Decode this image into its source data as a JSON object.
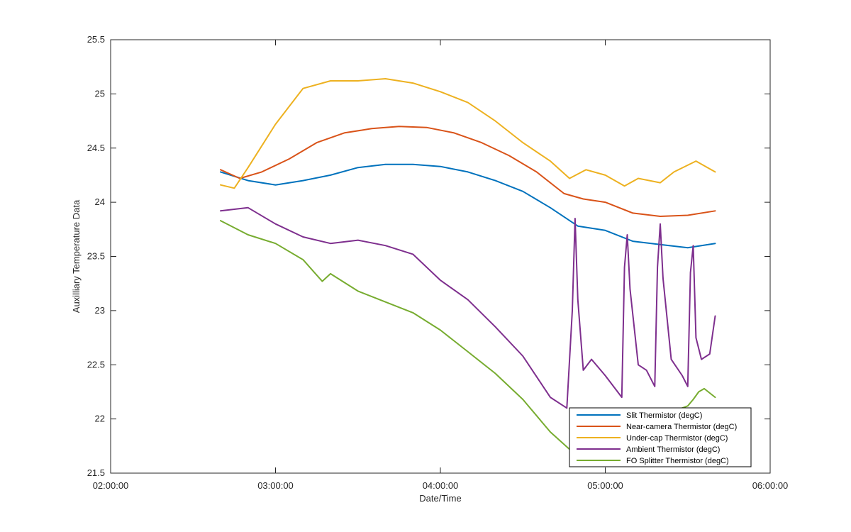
{
  "chart_data": {
    "type": "line",
    "xlabel": "Date/Time",
    "ylabel": "Auxilliary Temperature Data",
    "xlim": [
      "02:00:00",
      "06:00:00"
    ],
    "ylim": [
      21.5,
      25.5
    ],
    "x_ticks": [
      "02:00:00",
      "03:00:00",
      "04:00:00",
      "05:00:00",
      "06:00:00"
    ],
    "y_ticks": [
      21.5,
      22,
      22.5,
      23,
      23.5,
      24,
      24.5,
      25,
      25.5
    ],
    "grid": false,
    "legend_position": "bottom-right",
    "series": [
      {
        "name": "Slit Thermistor (degC)",
        "color": "#0072BD",
        "x": [
          "02:40:00",
          "02:50:00",
          "03:00:00",
          "03:10:00",
          "03:20:00",
          "03:30:00",
          "03:40:00",
          "03:50:00",
          "04:00:00",
          "04:10:00",
          "04:20:00",
          "04:30:00",
          "04:40:00",
          "04:50:00",
          "05:00:00",
          "05:10:00",
          "05:20:00",
          "05:30:00",
          "05:40:00"
        ],
        "values": [
          24.28,
          24.2,
          24.16,
          24.2,
          24.25,
          24.32,
          24.35,
          24.35,
          24.33,
          24.28,
          24.2,
          24.1,
          23.95,
          23.78,
          23.74,
          23.64,
          23.61,
          23.58,
          23.62
        ]
      },
      {
        "name": "Near-camera Thermistor (degC)",
        "color": "#D95319",
        "x": [
          "02:40:00",
          "02:47:00",
          "02:55:00",
          "03:05:00",
          "03:15:00",
          "03:25:00",
          "03:35:00",
          "03:45:00",
          "03:55:00",
          "04:05:00",
          "04:15:00",
          "04:25:00",
          "04:35:00",
          "04:45:00",
          "04:52:00",
          "05:00:00",
          "05:10:00",
          "05:20:00",
          "05:30:00",
          "05:40:00"
        ],
        "values": [
          24.3,
          24.22,
          24.28,
          24.4,
          24.55,
          24.64,
          24.68,
          24.7,
          24.69,
          24.64,
          24.55,
          24.43,
          24.28,
          24.08,
          24.03,
          24.0,
          23.9,
          23.87,
          23.88,
          23.92
        ]
      },
      {
        "name": "Under-cap Thermistor (degC)",
        "color": "#EDB120",
        "x": [
          "02:40:00",
          "02:45:00",
          "02:50:00",
          "03:00:00",
          "03:10:00",
          "03:20:00",
          "03:30:00",
          "03:40:00",
          "03:50:00",
          "04:00:00",
          "04:10:00",
          "04:20:00",
          "04:30:00",
          "04:40:00",
          "04:47:00",
          "04:53:00",
          "05:00:00",
          "05:07:00",
          "05:12:00",
          "05:20:00",
          "05:25:00",
          "05:33:00",
          "05:40:00"
        ],
        "values": [
          24.16,
          24.13,
          24.32,
          24.72,
          25.05,
          25.12,
          25.12,
          25.14,
          25.1,
          25.02,
          24.92,
          24.75,
          24.55,
          24.38,
          24.22,
          24.3,
          24.25,
          24.15,
          24.22,
          24.18,
          24.28,
          24.38,
          24.28
        ]
      },
      {
        "name": "Ambient Thermistor (degC)",
        "color": "#7E2F8E",
        "x": [
          "02:40:00",
          "02:50:00",
          "03:00:00",
          "03:10:00",
          "03:20:00",
          "03:30:00",
          "03:40:00",
          "03:50:00",
          "04:00:00",
          "04:10:00",
          "04:20:00",
          "04:30:00",
          "04:40:00",
          "04:46:00",
          "04:48:00",
          "04:49:00",
          "04:50:00",
          "04:52:00",
          "04:55:00",
          "05:00:00",
          "05:06:00",
          "05:07:00",
          "05:08:00",
          "05:09:00",
          "05:12:00",
          "05:15:00",
          "05:18:00",
          "05:19:00",
          "05:20:00",
          "05:21:00",
          "05:24:00",
          "05:28:00",
          "05:30:00",
          "05:31:00",
          "05:32:00",
          "05:33:00",
          "05:35:00",
          "05:38:00",
          "05:40:00"
        ],
        "values": [
          23.92,
          23.95,
          23.8,
          23.68,
          23.62,
          23.65,
          23.6,
          23.52,
          23.28,
          23.1,
          22.85,
          22.58,
          22.2,
          22.1,
          23.0,
          23.85,
          23.1,
          22.45,
          22.55,
          22.4,
          22.2,
          23.4,
          23.7,
          23.2,
          22.5,
          22.45,
          22.3,
          23.4,
          23.8,
          23.3,
          22.55,
          22.4,
          22.3,
          23.35,
          23.6,
          22.75,
          22.55,
          22.6,
          22.95
        ]
      },
      {
        "name": "FO Splitter Thermistor (degC)",
        "color": "#77AC30",
        "x": [
          "02:40:00",
          "02:50:00",
          "03:00:00",
          "03:10:00",
          "03:17:00",
          "03:20:00",
          "03:30:00",
          "03:40:00",
          "03:50:00",
          "04:00:00",
          "04:10:00",
          "04:20:00",
          "04:30:00",
          "04:40:00",
          "04:47:00",
          "05:30:00",
          "05:32:00",
          "05:34:00",
          "05:36:00",
          "05:40:00"
        ],
        "values": [
          23.83,
          23.7,
          23.62,
          23.47,
          23.27,
          23.34,
          23.18,
          23.08,
          22.98,
          22.82,
          22.62,
          22.42,
          22.18,
          21.88,
          21.72,
          22.12,
          22.18,
          22.25,
          22.28,
          22.2
        ]
      }
    ]
  }
}
